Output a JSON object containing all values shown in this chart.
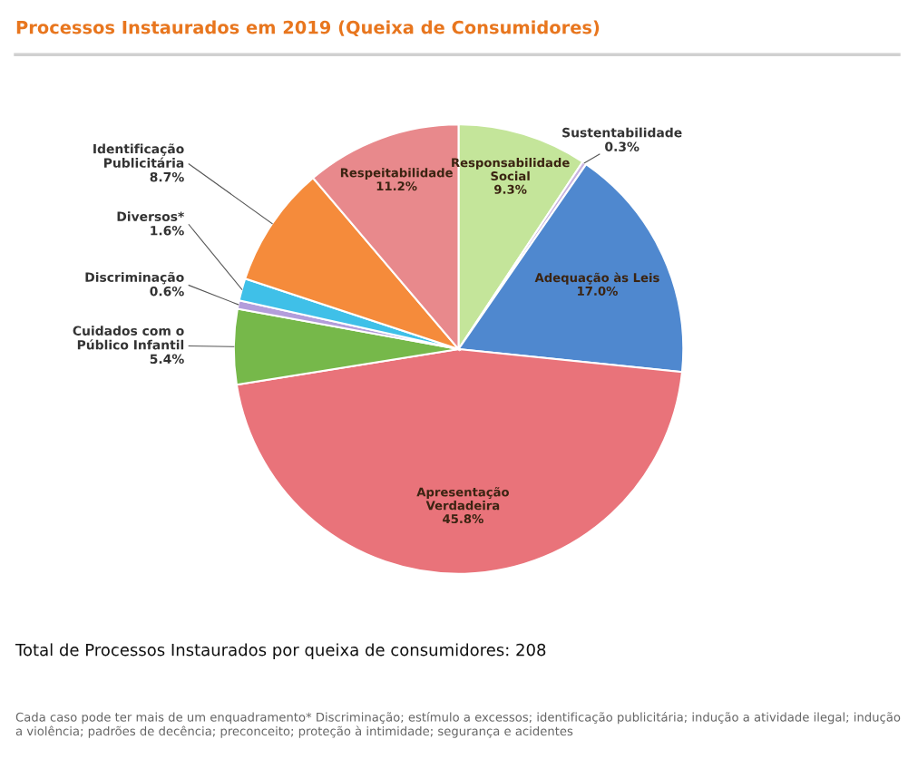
{
  "chart_data": {
    "type": "pie",
    "title": "Processos Instaurados em 2019 (Queixa de Consumidores)",
    "categories": [
      "Responsabilidade\nSocial",
      "Sustentabilidade",
      "Adequação às Leis",
      "Apresentação\nVerdadeira",
      "Cuidados com o\nPúblico Infantil",
      "Discriminação",
      "Diversos*",
      "Identificação\nPublicitária",
      "Respeitabilidade"
    ],
    "values": [
      9.3,
      0.3,
      17.0,
      45.8,
      5.4,
      0.6,
      1.6,
      8.7,
      11.2
    ],
    "value_labels": [
      "9.3%",
      "0.3%",
      "17.0%",
      "45.8%",
      "5.4%",
      "0.6%",
      "1.6%",
      "8.7%",
      "11.2%"
    ],
    "colors": [
      "#c4e59a",
      "#c9b3e0",
      "#4f88cf",
      "#e9737a",
      "#76b84a",
      "#b39ddb",
      "#3fc0e8",
      "#f58b3b",
      "#e8898c"
    ],
    "annotations": [
      "Total de Processos Instaurados por queixa de consumidores: 208",
      "Cada caso pode ter mais de um enquadramento* Discriminação; estímulo a excessos; identificação publicitária; indução a atividade ilegal; indução a violência; padrões de decência; preconceito; proteção à intimidade; segurança e acidentes"
    ]
  }
}
